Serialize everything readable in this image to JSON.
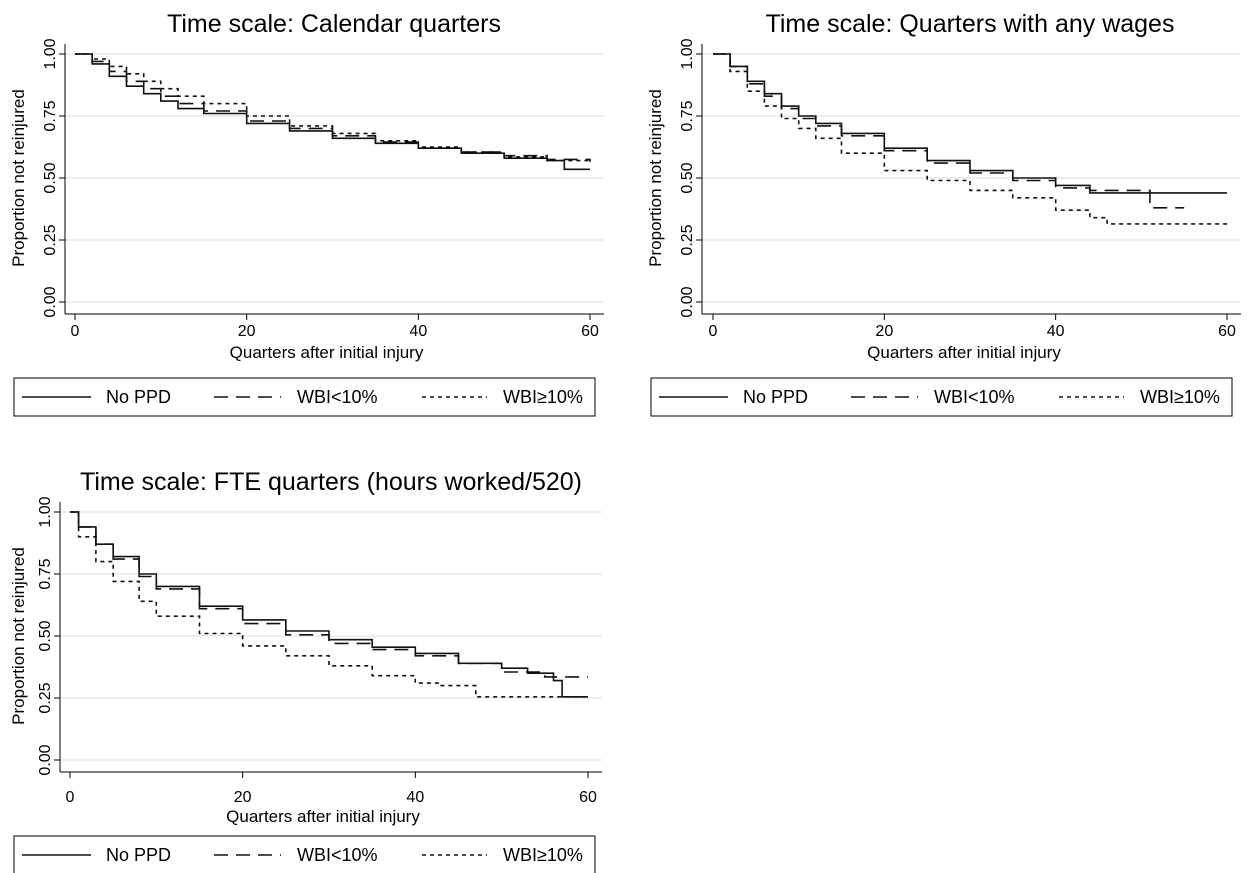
{
  "chart_data": [
    {
      "type": "line",
      "title": "Time scale: Calendar quarters",
      "xlabel": "Quarters after initial injury",
      "ylabel": "Proportion not reinjured",
      "xlim": [
        0,
        60
      ],
      "ylim": [
        0,
        1
      ],
      "xticks": [
        "0",
        "20",
        "40",
        "60"
      ],
      "yticks": [
        "0.00",
        "0.25",
        "0.50",
        "0.75",
        "1.00"
      ],
      "grid": true,
      "legend": "bottom",
      "series": [
        {
          "name": "No PPD",
          "style": "solid",
          "x": [
            0,
            2,
            4,
            6,
            8,
            10,
            12,
            15,
            20,
            25,
            30,
            35,
            40,
            45,
            50,
            55,
            57,
            60
          ],
          "y": [
            1.0,
            0.96,
            0.91,
            0.87,
            0.84,
            0.81,
            0.78,
            0.76,
            0.72,
            0.69,
            0.66,
            0.64,
            0.62,
            0.6,
            0.58,
            0.57,
            0.535,
            0.535
          ]
        },
        {
          "name": "WBI<10%",
          "style": "dashed",
          "x": [
            0,
            2,
            4,
            6,
            8,
            10,
            12,
            15,
            20,
            25,
            30,
            35,
            40,
            45,
            50,
            55,
            60
          ],
          "y": [
            1.0,
            0.97,
            0.93,
            0.89,
            0.86,
            0.83,
            0.8,
            0.77,
            0.73,
            0.7,
            0.67,
            0.645,
            0.62,
            0.605,
            0.59,
            0.575,
            0.565
          ]
        },
        {
          "name": "WBI≥10%",
          "style": "dotted",
          "x": [
            0,
            2,
            4,
            6,
            8,
            10,
            12,
            15,
            20,
            25,
            30,
            35,
            40,
            45,
            50,
            55,
            60
          ],
          "y": [
            1.0,
            0.98,
            0.95,
            0.92,
            0.89,
            0.86,
            0.83,
            0.8,
            0.75,
            0.71,
            0.68,
            0.65,
            0.625,
            0.605,
            0.585,
            0.57,
            0.57
          ]
        }
      ]
    },
    {
      "type": "line",
      "title": "Time scale: Quarters with any wages",
      "xlabel": "Quarters after initial injury",
      "ylabel": "Proportion not reinjured",
      "xlim": [
        0,
        60
      ],
      "ylim": [
        0,
        1
      ],
      "xticks": [
        "0",
        "20",
        "40",
        "60"
      ],
      "yticks": [
        "0.00",
        "0.25",
        "0.50",
        "0.75",
        "1.00"
      ],
      "grid": true,
      "legend": "bottom",
      "series": [
        {
          "name": "No PPD",
          "style": "solid",
          "x": [
            0,
            2,
            4,
            6,
            8,
            10,
            12,
            15,
            20,
            25,
            30,
            35,
            40,
            44,
            50,
            55,
            60
          ],
          "y": [
            1.0,
            0.95,
            0.89,
            0.84,
            0.79,
            0.75,
            0.72,
            0.68,
            0.62,
            0.57,
            0.53,
            0.5,
            0.47,
            0.44,
            0.44,
            0.44,
            0.44
          ]
        },
        {
          "name": "WBI<10%",
          "style": "dashed",
          "x": [
            0,
            2,
            4,
            6,
            8,
            10,
            12,
            15,
            20,
            25,
            30,
            35,
            40,
            44,
            50,
            51,
            55
          ],
          "y": [
            1.0,
            0.95,
            0.88,
            0.83,
            0.78,
            0.74,
            0.71,
            0.67,
            0.61,
            0.56,
            0.52,
            0.49,
            0.46,
            0.45,
            0.45,
            0.38,
            0.38
          ]
        },
        {
          "name": "WBI≥10%",
          "style": "dotted",
          "x": [
            0,
            2,
            4,
            6,
            8,
            10,
            12,
            15,
            20,
            25,
            30,
            35,
            40,
            44,
            46,
            50,
            55,
            60
          ],
          "y": [
            1.0,
            0.93,
            0.85,
            0.79,
            0.74,
            0.7,
            0.66,
            0.6,
            0.53,
            0.49,
            0.45,
            0.42,
            0.37,
            0.34,
            0.315,
            0.315,
            0.315,
            0.315
          ]
        }
      ]
    },
    {
      "type": "line",
      "title": "Time scale: FTE quarters (hours worked/520)",
      "xlabel": "Quarters after initial injury",
      "ylabel": "Proportion not reinjured",
      "xlim": [
        0,
        60
      ],
      "ylim": [
        0,
        1
      ],
      "xticks": [
        "0",
        "20",
        "40",
        "60"
      ],
      "yticks": [
        "0.00",
        "0.25",
        "0.50",
        "0.75",
        "1.00"
      ],
      "grid": true,
      "legend": "bottom",
      "series": [
        {
          "name": "No PPD",
          "style": "solid",
          "x": [
            0,
            1,
            3,
            5,
            8,
            10,
            15,
            20,
            25,
            30,
            35,
            40,
            45,
            50,
            53,
            56,
            57,
            60
          ],
          "y": [
            1.0,
            0.94,
            0.87,
            0.82,
            0.75,
            0.7,
            0.62,
            0.565,
            0.52,
            0.485,
            0.455,
            0.43,
            0.39,
            0.37,
            0.35,
            0.32,
            0.255,
            0.255
          ]
        },
        {
          "name": "WBI<10%",
          "style": "dashed",
          "x": [
            0,
            1,
            3,
            5,
            8,
            10,
            15,
            20,
            25,
            30,
            35,
            40,
            45,
            50,
            55,
            60
          ],
          "y": [
            1.0,
            0.94,
            0.87,
            0.81,
            0.74,
            0.69,
            0.61,
            0.55,
            0.505,
            0.47,
            0.445,
            0.42,
            0.39,
            0.355,
            0.335,
            0.335
          ]
        },
        {
          "name": "WBI≥10%",
          "style": "dotted",
          "x": [
            0,
            1,
            3,
            5,
            8,
            10,
            15,
            20,
            25,
            30,
            35,
            40,
            43,
            47,
            50,
            55,
            60
          ],
          "y": [
            1.0,
            0.9,
            0.8,
            0.72,
            0.64,
            0.58,
            0.51,
            0.46,
            0.42,
            0.38,
            0.34,
            0.31,
            0.3,
            0.255,
            0.255,
            0.255,
            0.255
          ]
        }
      ]
    }
  ]
}
